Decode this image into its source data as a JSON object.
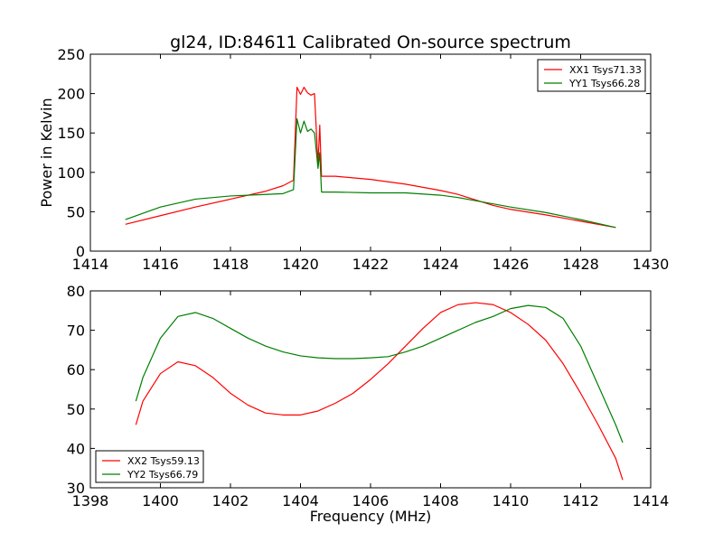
{
  "colors": {
    "red": "#ff0000",
    "green": "#007f00"
  },
  "chart_data": [
    {
      "type": "line",
      "title": "gl24, ID:84611 Calibrated On-source spectrum",
      "xlabel": "",
      "ylabel": "Power in Kelvin",
      "xlim": [
        1414,
        1430
      ],
      "ylim": [
        0,
        250
      ],
      "xticks": [
        "1414",
        "1416",
        "1418",
        "1420",
        "1422",
        "1424",
        "1426",
        "1428",
        "1430"
      ],
      "yticks": [
        "0",
        "50",
        "100",
        "150",
        "200",
        "250"
      ],
      "grid": false,
      "legend_position": "top-right",
      "series": [
        {
          "name": "XX1 Tsys71.33",
          "color": "#ff0000",
          "x": [
            1415.0,
            1416.0,
            1417.0,
            1418.0,
            1419.0,
            1419.5,
            1419.8,
            1419.9,
            1420.0,
            1420.1,
            1420.2,
            1420.3,
            1420.4,
            1420.5,
            1420.55,
            1420.6,
            1420.7,
            1421.0,
            1422.0,
            1423.0,
            1424.0,
            1424.5,
            1425.0,
            1425.5,
            1426.0,
            1427.0,
            1428.0,
            1429.0
          ],
          "y": [
            34,
            45,
            56,
            66,
            76,
            83,
            90,
            208,
            199,
            208,
            201,
            198,
            200,
            110,
            160,
            95,
            95,
            95,
            91,
            85,
            77,
            72,
            65,
            58,
            53,
            46,
            38,
            30
          ]
        },
        {
          "name": "YY1 Tsys66.28",
          "color": "#007f00",
          "x": [
            1415.0,
            1416.0,
            1417.0,
            1418.0,
            1419.0,
            1419.5,
            1419.8,
            1419.9,
            1420.0,
            1420.1,
            1420.2,
            1420.3,
            1420.4,
            1420.5,
            1420.55,
            1420.6,
            1420.7,
            1421.0,
            1422.0,
            1423.0,
            1424.0,
            1424.5,
            1425.0,
            1425.5,
            1426.0,
            1427.0,
            1428.0,
            1429.0
          ],
          "y": [
            40,
            56,
            66,
            70,
            72,
            73,
            78,
            168,
            150,
            165,
            152,
            155,
            150,
            105,
            125,
            75,
            75,
            75,
            74,
            74,
            71,
            68,
            64,
            60,
            56,
            49,
            40,
            30
          ]
        }
      ]
    },
    {
      "type": "line",
      "title": "",
      "xlabel": "Frequency (MHz)",
      "ylabel": "",
      "xlim": [
        1398,
        1414
      ],
      "ylim": [
        30,
        80
      ],
      "xticks": [
        "1398",
        "1400",
        "1402",
        "1404",
        "1406",
        "1408",
        "1410",
        "1412",
        "1414"
      ],
      "yticks": [
        "30",
        "40",
        "50",
        "60",
        "70",
        "80"
      ],
      "grid": false,
      "legend_position": "bottom-left",
      "series": [
        {
          "name": "XX2 Tsys59.13",
          "color": "#ff0000",
          "x": [
            1399.3,
            1399.5,
            1400.0,
            1400.5,
            1401.0,
            1401.5,
            1402.0,
            1402.5,
            1403.0,
            1403.5,
            1404.0,
            1404.5,
            1405.0,
            1405.5,
            1406.0,
            1406.5,
            1407.0,
            1407.5,
            1408.0,
            1408.5,
            1409.0,
            1409.5,
            1410.0,
            1410.5,
            1411.0,
            1411.5,
            1412.0,
            1412.5,
            1413.0,
            1413.2
          ],
          "y": [
            46,
            52,
            59,
            62,
            61,
            58,
            54,
            51,
            49,
            48.5,
            48.5,
            49.5,
            51.5,
            54,
            57.5,
            61.5,
            66,
            70.5,
            74.5,
            76.5,
            77,
            76.5,
            74.5,
            71.5,
            67.5,
            61.5,
            54,
            46,
            37.5,
            32
          ]
        },
        {
          "name": "YY2 Tsys66.79",
          "color": "#007f00",
          "x": [
            1399.3,
            1399.5,
            1400.0,
            1400.5,
            1401.0,
            1401.5,
            1402.0,
            1402.5,
            1403.0,
            1403.5,
            1404.0,
            1404.5,
            1405.0,
            1405.5,
            1406.0,
            1406.5,
            1407.0,
            1407.5,
            1408.0,
            1408.5,
            1409.0,
            1409.5,
            1410.0,
            1410.5,
            1411.0,
            1411.5,
            1412.0,
            1412.5,
            1413.0,
            1413.2
          ],
          "y": [
            52,
            58,
            68,
            73.5,
            74.5,
            73,
            70.5,
            68,
            66,
            64.5,
            63.5,
            63,
            62.8,
            62.8,
            63,
            63.3,
            64.5,
            66,
            68,
            70,
            72,
            73.5,
            75.5,
            76.3,
            75.8,
            73,
            66,
            56,
            46,
            41.5
          ]
        }
      ]
    }
  ]
}
